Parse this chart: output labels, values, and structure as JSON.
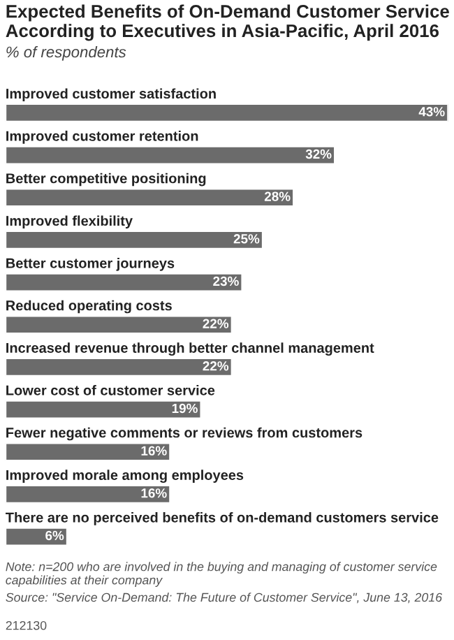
{
  "chart_data": {
    "type": "bar",
    "orientation": "horizontal",
    "title": "Expected Benefits of On-Demand Customer Service According to Executives in Asia-Pacific, April 2016",
    "subtitle": "% of respondents",
    "categories": [
      "Improved customer satisfaction",
      "Improved customer retention",
      "Better competitive positioning",
      "Improved flexibility",
      "Better customer journeys",
      "Reduced operating costs",
      "Increased revenue through better channel management",
      "Lower cost of customer service",
      "Fewer negative comments or reviews from customers",
      "Improved morale among employees",
      "There are no perceived benefits of on-demand customers service"
    ],
    "values": [
      43,
      32,
      28,
      25,
      23,
      22,
      22,
      19,
      16,
      16,
      6
    ],
    "value_labels": [
      "43%",
      "32%",
      "28%",
      "25%",
      "23%",
      "22%",
      "22%",
      "19%",
      "16%",
      "16%",
      "6%"
    ],
    "color": "#6b6b6b",
    "annotations": [
      "Note: n=200 who are involved in the buying and managing of customer service capabilities at their company",
      "Source: \"Service On-Demand: The Future of Customer Service\", June 13, 2016",
      "212130"
    ]
  }
}
